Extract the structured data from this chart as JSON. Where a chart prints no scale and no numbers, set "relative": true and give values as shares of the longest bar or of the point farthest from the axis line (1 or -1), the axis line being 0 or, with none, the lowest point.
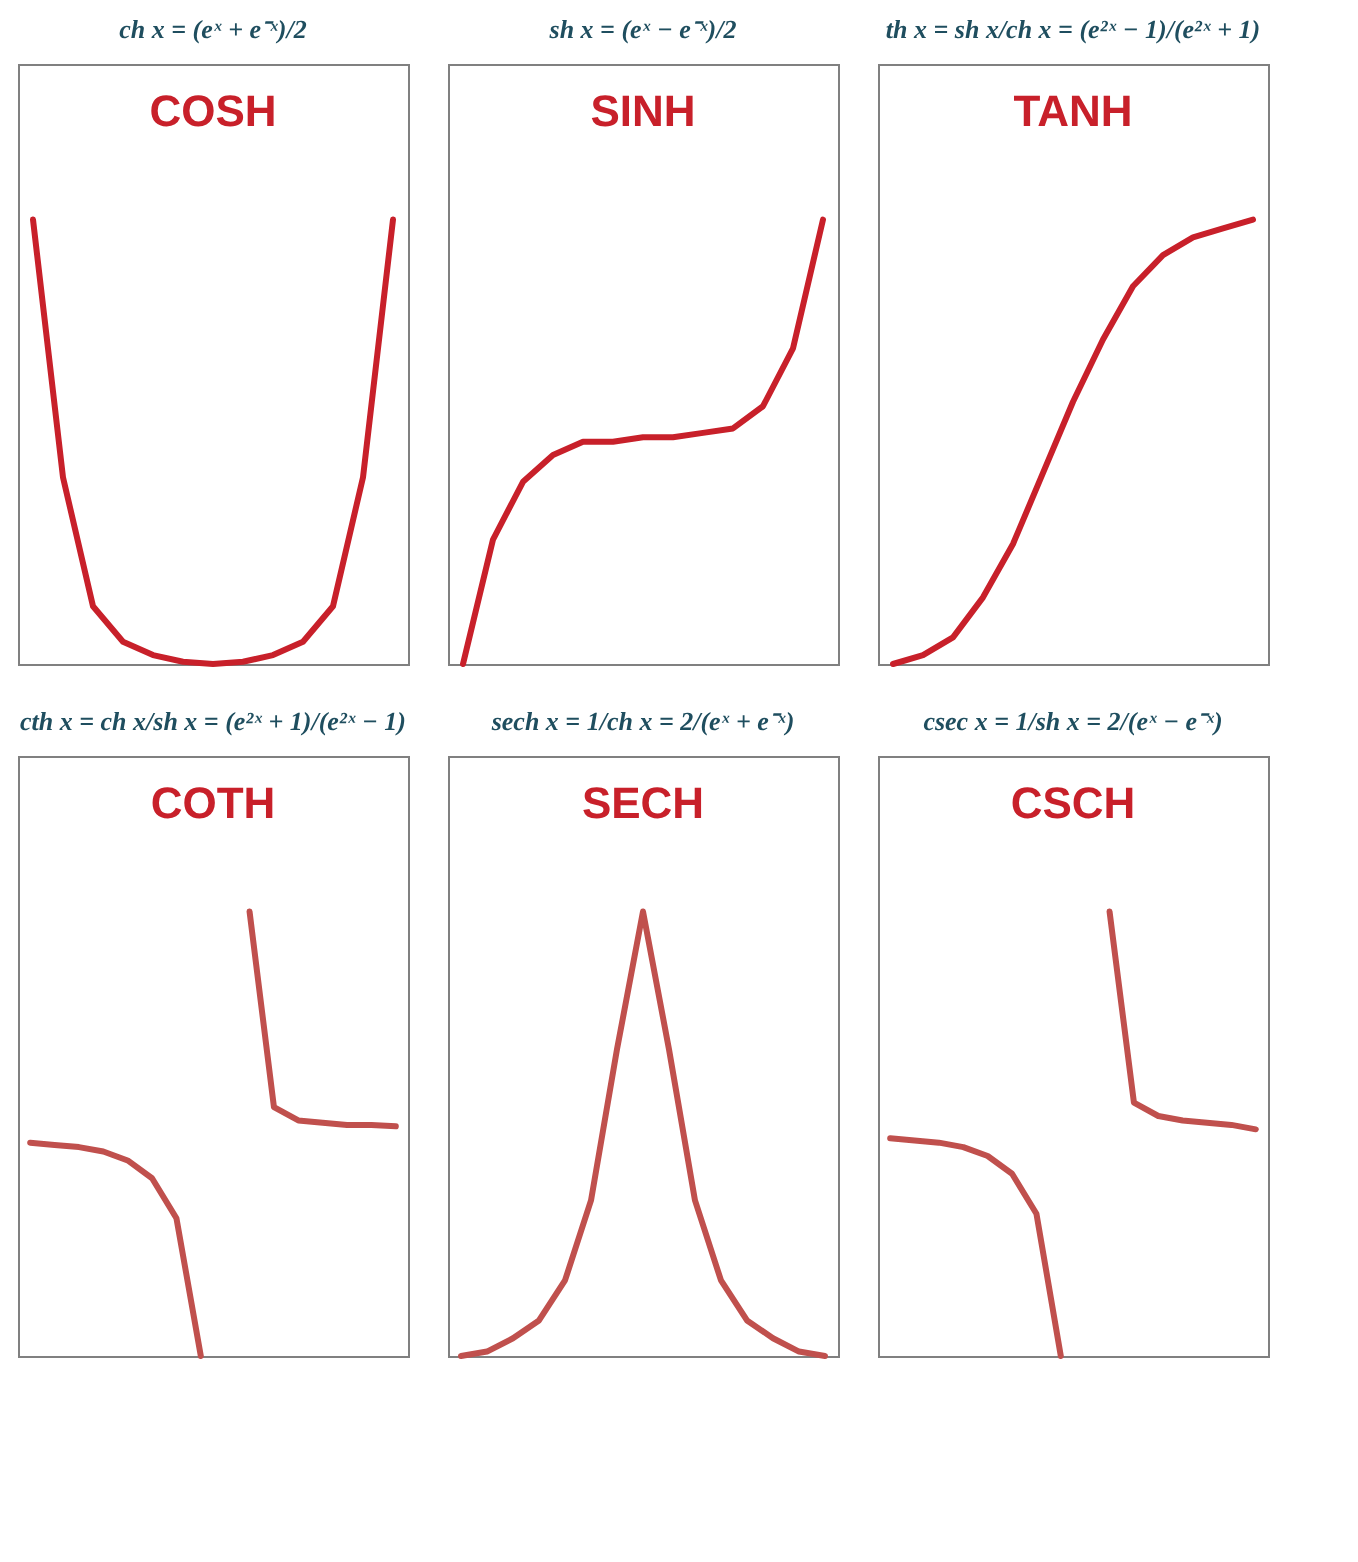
{
  "chart_data": [
    {
      "type": "line",
      "relative": true,
      "title": "COSH",
      "annotations": [
        "ch x = (eˣ + e⁻ˣ)/2"
      ],
      "categories": [
        null,
        null,
        null,
        null,
        null,
        null,
        null,
        null,
        null,
        null,
        null,
        null,
        null
      ],
      "series": [
        {
          "color": "#c8202a",
          "values": [
            1,
            0.42,
            0.13,
            0.05,
            0.02,
            0.005,
            0,
            0.005,
            0.02,
            0.05,
            0.13,
            0.42,
            1
          ]
        }
      ]
    },
    {
      "type": "line",
      "relative": true,
      "title": "SINH",
      "annotations": [
        "sh x = (eˣ − e⁻ˣ)/2"
      ],
      "categories": [
        null,
        null,
        null,
        null,
        null,
        null,
        null,
        null,
        null,
        null,
        null,
        null,
        null
      ],
      "series": [
        {
          "color": "#c8202a",
          "values": [
            0,
            0.28,
            0.41,
            0.47,
            0.5,
            0.5,
            0.51,
            0.51,
            0.52,
            0.53,
            0.58,
            0.71,
            1
          ]
        }
      ]
    },
    {
      "type": "line",
      "relative": true,
      "title": "TANH",
      "annotations": [
        "th x = sh x/ch x = (e²ˣ − 1)/(e²ˣ + 1)"
      ],
      "categories": [
        null,
        null,
        null,
        null,
        null,
        null,
        null,
        null,
        null,
        null,
        null,
        null,
        null
      ],
      "series": [
        {
          "color": "#c8202a",
          "values": [
            0,
            0.02,
            0.06,
            0.15,
            0.27,
            0.43,
            0.59,
            0.73,
            0.85,
            0.92,
            0.96,
            0.98,
            1
          ]
        }
      ]
    },
    {
      "type": "line",
      "relative": true,
      "title": "COTH",
      "annotations": [
        "cth x = ch x/sh x = (e²ˣ + 1)/(e²ˣ − 1)"
      ],
      "categories": [
        null,
        null,
        null,
        null,
        null,
        null,
        null,
        null,
        null,
        null,
        null,
        null,
        null,
        null,
        null,
        null
      ],
      "series": [
        {
          "color": "#c0504d",
          "values": [
            0.48,
            0.475,
            0.47,
            0.46,
            0.44,
            0.4,
            0.31,
            0,
            null,
            null,
            null,
            null,
            null,
            null,
            null,
            null
          ]
        },
        {
          "color": "#c0504d",
          "values": [
            null,
            null,
            null,
            null,
            null,
            null,
            null,
            null,
            null,
            1,
            0.56,
            0.53,
            0.525,
            0.52,
            0.52,
            0.517
          ]
        }
      ]
    },
    {
      "type": "line",
      "relative": true,
      "title": "SECH",
      "annotations": [
        "sech x = 1/ch x = 2/(eˣ + e⁻ˣ)"
      ],
      "categories": [
        null,
        null,
        null,
        null,
        null,
        null,
        null,
        null,
        null,
        null,
        null,
        null,
        null,
        null,
        null
      ],
      "series": [
        {
          "color": "#c0504d",
          "values": [
            0,
            0.01,
            0.04,
            0.08,
            0.17,
            0.35,
            0.69,
            1,
            0.69,
            0.35,
            0.17,
            0.08,
            0.04,
            0.01,
            0
          ]
        }
      ]
    },
    {
      "type": "line",
      "relative": true,
      "title": "CSCH",
      "annotations": [
        "csec x = 1/sh x = 2/(eˣ − e⁻ˣ)"
      ],
      "categories": [
        null,
        null,
        null,
        null,
        null,
        null,
        null,
        null,
        null,
        null,
        null,
        null,
        null,
        null,
        null,
        null
      ],
      "series": [
        {
          "color": "#c0504d",
          "values": [
            0.49,
            0.485,
            0.48,
            0.47,
            0.45,
            0.41,
            0.32,
            0,
            null,
            null,
            null,
            null,
            null,
            null,
            null,
            null
          ]
        },
        {
          "color": "#c0504d",
          "values": [
            null,
            null,
            null,
            null,
            null,
            null,
            null,
            null,
            null,
            1,
            0.57,
            0.54,
            0.53,
            0.525,
            0.52,
            0.51
          ]
        }
      ]
    }
  ]
}
